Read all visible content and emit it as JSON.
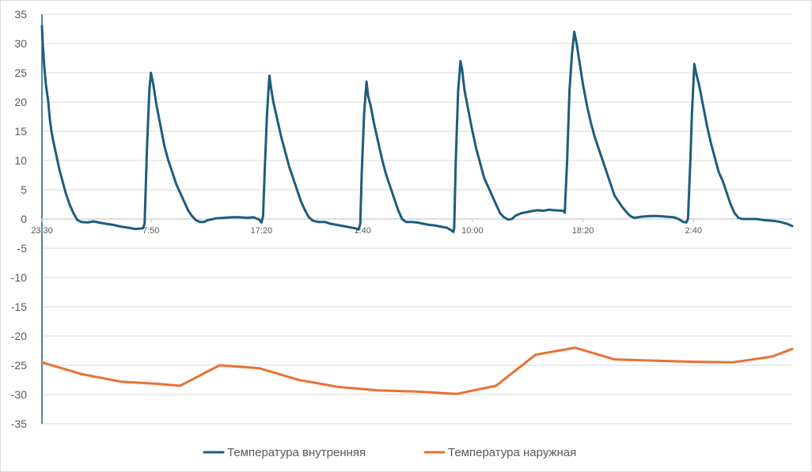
{
  "chart_data": {
    "type": "line",
    "title": "",
    "xlabel": "",
    "ylabel": "",
    "ylim": [
      -35,
      35
    ],
    "yticks": [
      35,
      30,
      25,
      20,
      15,
      10,
      5,
      0,
      -5,
      -10,
      -15,
      -20,
      -25,
      -30,
      -35
    ],
    "x_tick_labels": [
      "23:30",
      "7:50",
      "17:20",
      "1:40",
      "10:00",
      "18:20",
      "2:40"
    ],
    "x_range": [
      0,
      950
    ],
    "x_tick_positions": [
      0,
      138,
      278,
      406,
      545,
      685,
      825
    ],
    "grid": "horizontal",
    "legend_position": "bottom",
    "series": [
      {
        "name": "Температура внутренняя",
        "color": "#1c5d7f",
        "points": [
          [
            0,
            33
          ],
          [
            1,
            30
          ],
          [
            3,
            26
          ],
          [
            5,
            23
          ],
          [
            8,
            20
          ],
          [
            10,
            17
          ],
          [
            12,
            15
          ],
          [
            14,
            13.5
          ],
          [
            18,
            11
          ],
          [
            22,
            8.5
          ],
          [
            26,
            6.5
          ],
          [
            30,
            4.5
          ],
          [
            35,
            2.5
          ],
          [
            40,
            1
          ],
          [
            45,
            -0.2
          ],
          [
            50,
            -0.5
          ],
          [
            58,
            -0.6
          ],
          [
            65,
            -0.4
          ],
          [
            72,
            -0.6
          ],
          [
            80,
            -0.8
          ],
          [
            90,
            -1
          ],
          [
            100,
            -1.3
          ],
          [
            110,
            -1.5
          ],
          [
            118,
            -1.7
          ],
          [
            128,
            -1.6
          ],
          [
            130,
            -0.8
          ],
          [
            133,
            12
          ],
          [
            136,
            22
          ],
          [
            138,
            25
          ],
          [
            141,
            23
          ],
          [
            145,
            19.5
          ],
          [
            150,
            16
          ],
          [
            155,
            12.5
          ],
          [
            160,
            10
          ],
          [
            165,
            8
          ],
          [
            170,
            6
          ],
          [
            175,
            4.5
          ],
          [
            180,
            3
          ],
          [
            185,
            1.5
          ],
          [
            190,
            0.5
          ],
          [
            195,
            -0.2
          ],
          [
            200,
            -0.5
          ],
          [
            205,
            -0.5
          ],
          [
            210,
            -0.2
          ],
          [
            220,
            0.1
          ],
          [
            230,
            0.2
          ],
          [
            240,
            0.3
          ],
          [
            250,
            0.3
          ],
          [
            260,
            0.2
          ],
          [
            268,
            0.3
          ],
          [
            275,
            -0.1
          ],
          [
            278,
            -0.6
          ],
          [
            280,
            0.5
          ],
          [
            282,
            8
          ],
          [
            285,
            18
          ],
          [
            288,
            24.5
          ],
          [
            290,
            22.5
          ],
          [
            293,
            20
          ],
          [
            298,
            17
          ],
          [
            303,
            14
          ],
          [
            308,
            11.5
          ],
          [
            313,
            9
          ],
          [
            318,
            7
          ],
          [
            323,
            5
          ],
          [
            328,
            3
          ],
          [
            333,
            1.5
          ],
          [
            338,
            0.3
          ],
          [
            343,
            -0.3
          ],
          [
            350,
            -0.5
          ],
          [
            358,
            -0.5
          ],
          [
            365,
            -0.8
          ],
          [
            373,
            -1
          ],
          [
            381,
            -1.2
          ],
          [
            389,
            -1.4
          ],
          [
            397,
            -1.6
          ],
          [
            401,
            -1.8
          ],
          [
            403,
            -0.8
          ],
          [
            405,
            8
          ],
          [
            408,
            18
          ],
          [
            411,
            23.5
          ],
          [
            413,
            21
          ],
          [
            416,
            19.5
          ],
          [
            421,
            16
          ],
          [
            426,
            13
          ],
          [
            431,
            10
          ],
          [
            436,
            7.5
          ],
          [
            441,
            5.5
          ],
          [
            446,
            3.5
          ],
          [
            451,
            1.5
          ],
          [
            456,
            0
          ],
          [
            461,
            -0.5
          ],
          [
            468,
            -0.5
          ],
          [
            475,
            -0.6
          ],
          [
            482,
            -0.8
          ],
          [
            490,
            -1
          ],
          [
            497,
            -1.1
          ],
          [
            505,
            -1.3
          ],
          [
            513,
            -1.5
          ],
          [
            519,
            -2
          ],
          [
            521,
            -2.2
          ],
          [
            522,
            -1.5
          ],
          [
            524,
            10
          ],
          [
            527,
            22
          ],
          [
            530,
            27
          ],
          [
            532,
            25.5
          ],
          [
            535,
            22
          ],
          [
            540,
            18.5
          ],
          [
            545,
            15
          ],
          [
            550,
            12
          ],
          [
            555,
            9.5
          ],
          [
            560,
            7
          ],
          [
            565,
            5.5
          ],
          [
            570,
            4
          ],
          [
            575,
            2.5
          ],
          [
            580,
            1
          ],
          [
            585,
            0.3
          ],
          [
            590,
            -0.1
          ],
          [
            595,
            0
          ],
          [
            600,
            0.6
          ],
          [
            607,
            1
          ],
          [
            615,
            1.2
          ],
          [
            622,
            1.4
          ],
          [
            628,
            1.5
          ],
          [
            635,
            1.4
          ],
          [
            642,
            1.6
          ],
          [
            648,
            1.5
          ],
          [
            660,
            1.4
          ],
          [
            662,
            1.1
          ],
          [
            665,
            10
          ],
          [
            668,
            22
          ],
          [
            671,
            28
          ],
          [
            674,
            32
          ],
          [
            677,
            30
          ],
          [
            681,
            26.5
          ],
          [
            685,
            23
          ],
          [
            690,
            19.5
          ],
          [
            695,
            16.5
          ],
          [
            700,
            14
          ],
          [
            705,
            12
          ],
          [
            710,
            10
          ],
          [
            715,
            8
          ],
          [
            720,
            6
          ],
          [
            725,
            4
          ],
          [
            730,
            3
          ],
          [
            735,
            2
          ],
          [
            740,
            1.2
          ],
          [
            745,
            0.5
          ],
          [
            750,
            0.2
          ],
          [
            760,
            0.4
          ],
          [
            770,
            0.5
          ],
          [
            780,
            0.5
          ],
          [
            790,
            0.4
          ],
          [
            800,
            0.3
          ],
          [
            806,
            0
          ],
          [
            812,
            -0.5
          ],
          [
            816,
            -0.6
          ],
          [
            818,
            0
          ],
          [
            821,
            10
          ],
          [
            823,
            18
          ],
          [
            826,
            26.5
          ],
          [
            829,
            24.5
          ],
          [
            832,
            23
          ],
          [
            837,
            19.5
          ],
          [
            842,
            16
          ],
          [
            847,
            13
          ],
          [
            852,
            10.5
          ],
          [
            857,
            8
          ],
          [
            862,
            6.5
          ],
          [
            867,
            4.5
          ],
          [
            872,
            2.5
          ],
          [
            877,
            1
          ],
          [
            882,
            0.2
          ],
          [
            887,
            0
          ],
          [
            895,
            0
          ],
          [
            905,
            0
          ],
          [
            915,
            -0.2
          ],
          [
            925,
            -0.3
          ],
          [
            935,
            -0.5
          ],
          [
            943,
            -0.8
          ],
          [
            950,
            -1.2
          ]
        ]
      },
      {
        "name": "Температура наружная",
        "color": "#e97132",
        "points": [
          [
            0,
            -24.5
          ],
          [
            50,
            -26.5
          ],
          [
            100,
            -27.8
          ],
          [
            150,
            -28.2
          ],
          [
            175,
            -28.5
          ],
          [
            225,
            -25
          ],
          [
            275,
            -25.5
          ],
          [
            325,
            -27.5
          ],
          [
            375,
            -28.7
          ],
          [
            425,
            -29.3
          ],
          [
            475,
            -29.5
          ],
          [
            525,
            -29.9
          ],
          [
            575,
            -28.5
          ],
          [
            625,
            -23.2
          ],
          [
            675,
            -22
          ],
          [
            725,
            -24
          ],
          [
            775,
            -24.2
          ],
          [
            825,
            -24.4
          ],
          [
            875,
            -24.5
          ],
          [
            925,
            -23.5
          ],
          [
            950,
            -22.2
          ]
        ]
      }
    ]
  }
}
